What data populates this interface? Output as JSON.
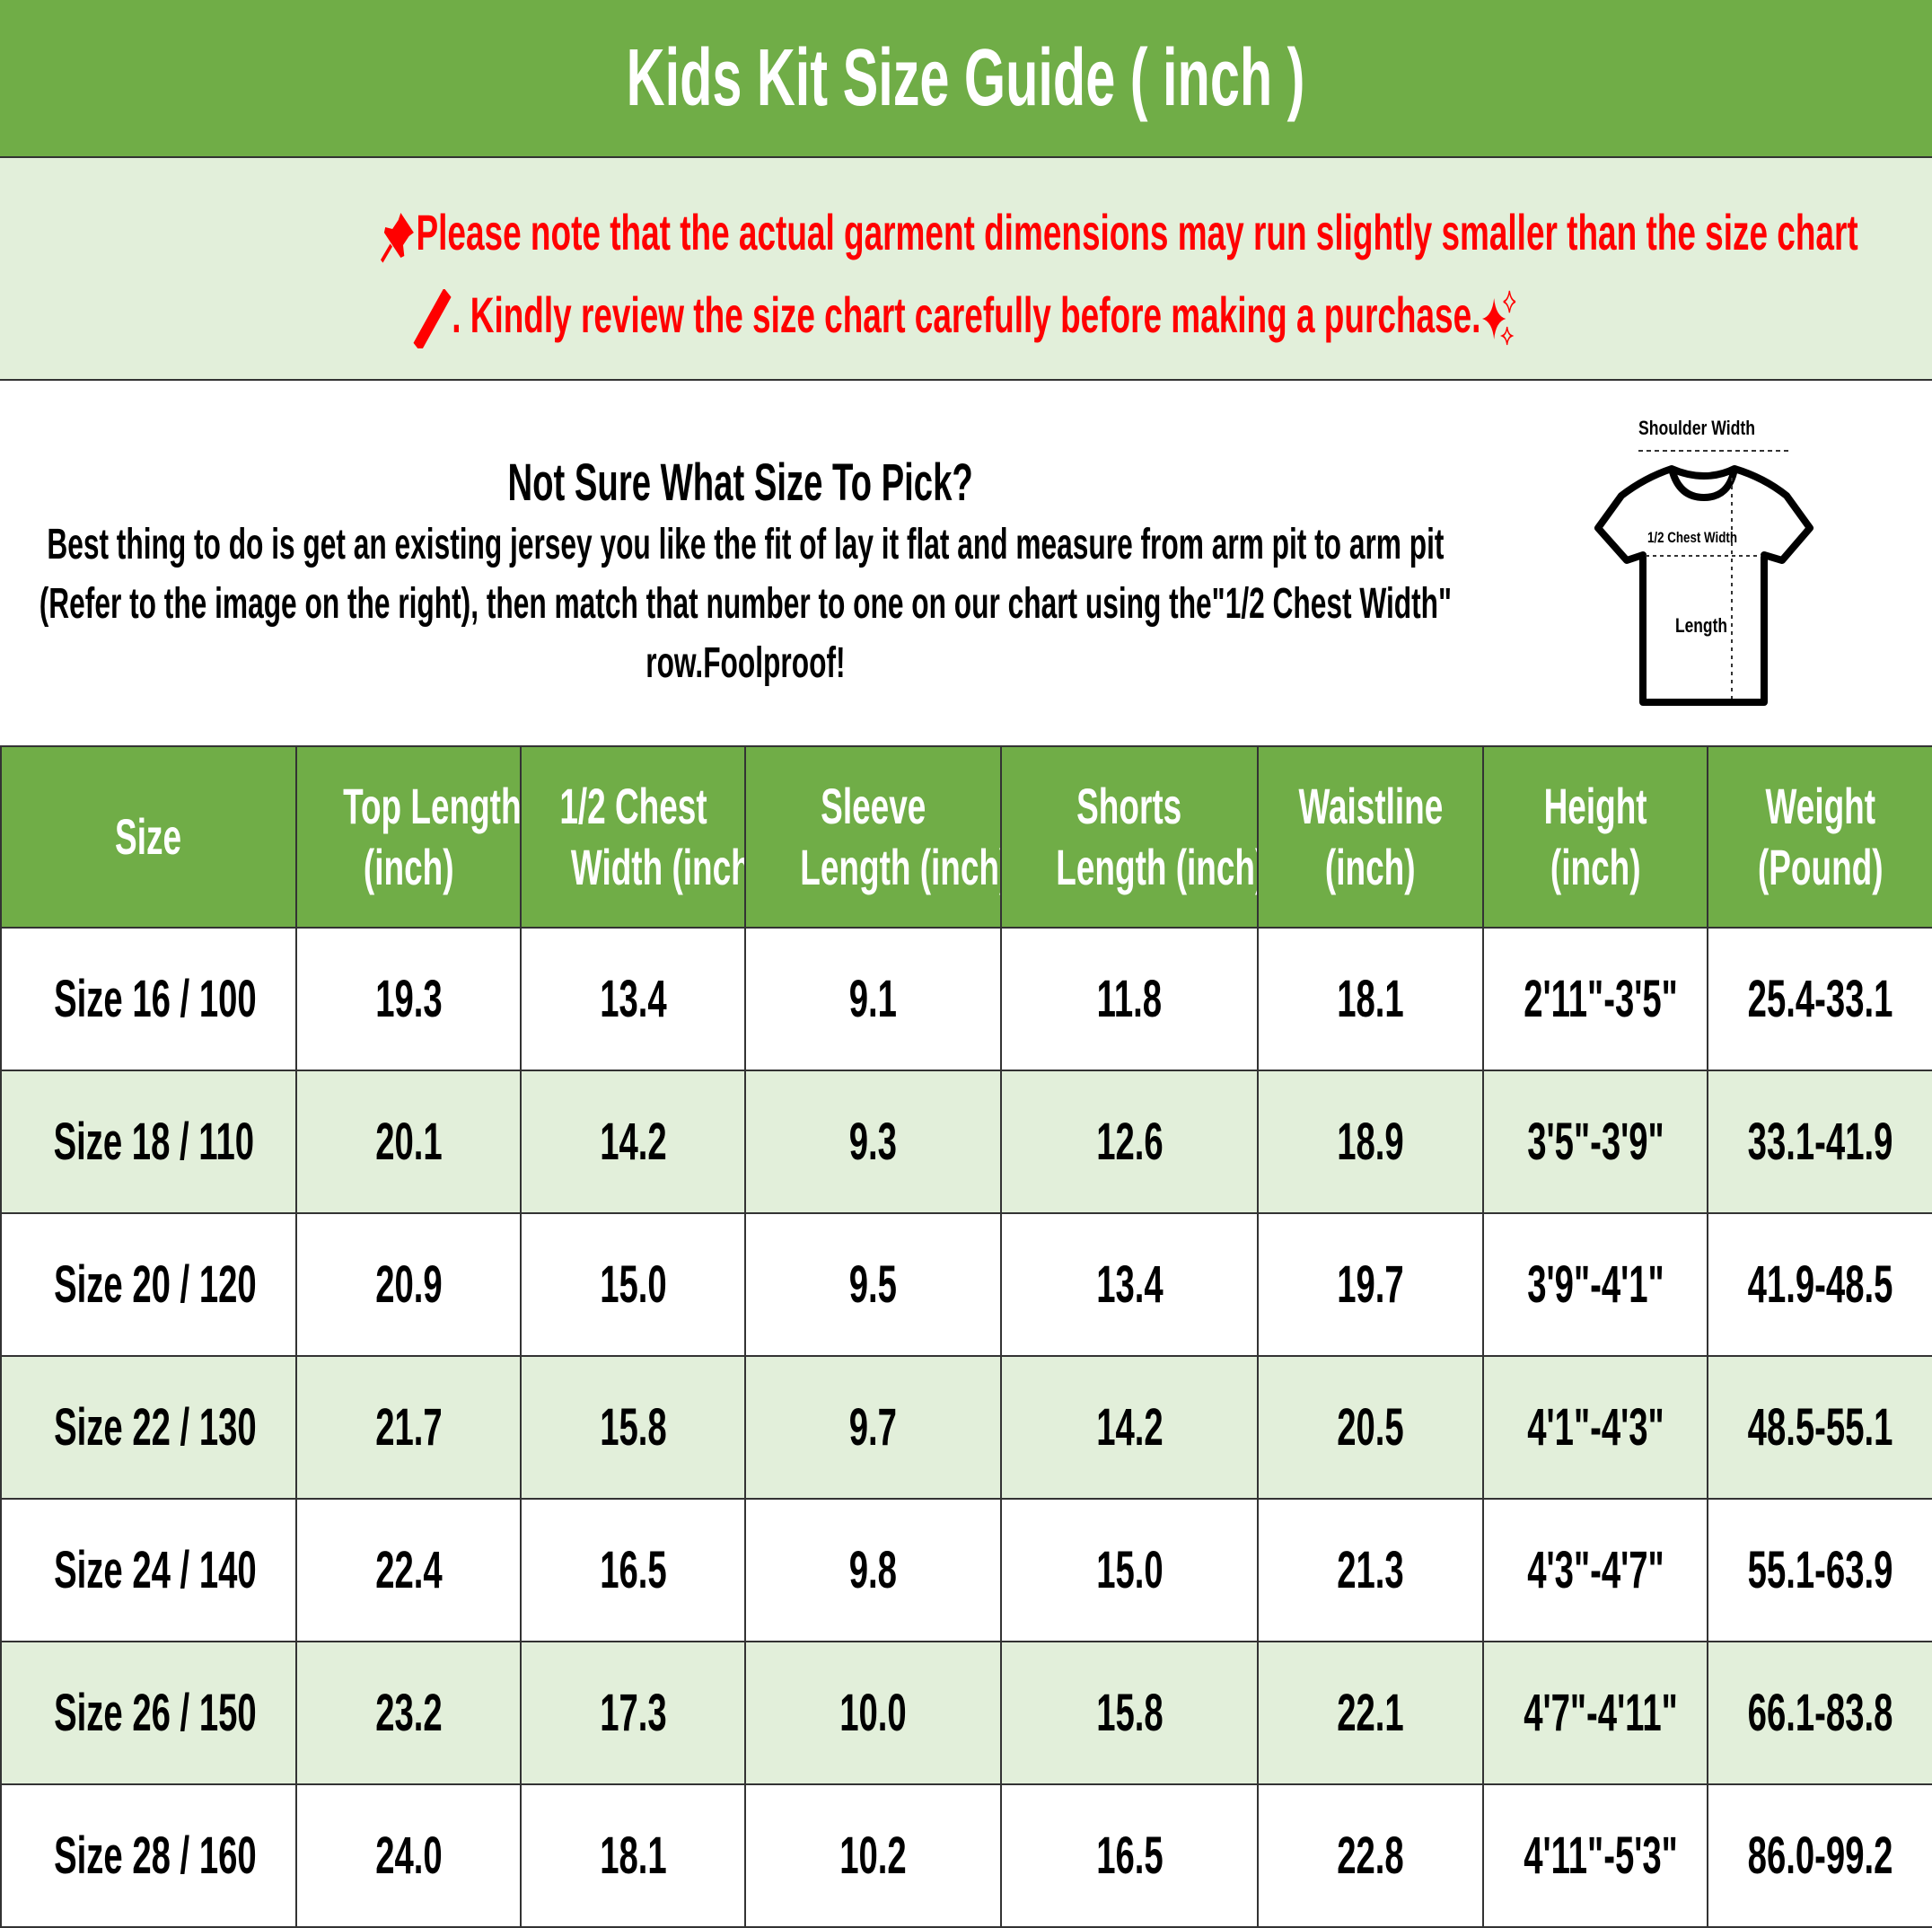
{
  "title": "Kids Kit Size Guide ( inch )",
  "notice": {
    "line1": "Please note that the actual garment dimensions may run slightly smaller than the size chart",
    "line2": ". Kindly review the size chart carefully before making a purchase.",
    "icons": [
      "pushpin-icon",
      "ruler-icon",
      "sparkles-icon"
    ],
    "color": "#ff0000"
  },
  "info": {
    "heading": "Not Sure What Size To Pick?",
    "body": "Best thing to do is get an existing jersey you like the fit of lay it flat and measure from arm pit to arm pit (Refer to the image on the right), then match that number to one on our chart using the\"1/2 Chest Width\" row.Foolproof!",
    "diagram": {
      "shoulder": "Shoulder Width",
      "chest": "1/2 Chest Width",
      "length": "Length"
    }
  },
  "colors": {
    "header_green": "#70ad47",
    "alt_row": "#e2efda"
  },
  "table": {
    "headers": [
      [
        "Size",
        ""
      ],
      [
        "Top Length",
        "(inch)"
      ],
      [
        "1/2 Chest",
        "Width (inch)"
      ],
      [
        "Sleeve",
        "Length (inch)"
      ],
      [
        "Shorts",
        "Length (inch)"
      ],
      [
        "Waistline",
        "(inch)"
      ],
      [
        "Height",
        "(inch)"
      ],
      [
        "Weight",
        "(Pound)"
      ]
    ],
    "rows": [
      [
        "Size 16 / 100",
        "19.3",
        "13.4",
        "9.1",
        "11.8",
        "18.1",
        "2'11\"-3'5\"",
        "25.4-33.1"
      ],
      [
        "Size 18 / 110",
        "20.1",
        "14.2",
        "9.3",
        "12.6",
        "18.9",
        "3'5\"-3'9\"",
        "33.1-41.9"
      ],
      [
        "Size 20 / 120",
        "20.9",
        "15.0",
        "9.5",
        "13.4",
        "19.7",
        "3'9\"-4'1\"",
        "41.9-48.5"
      ],
      [
        "Size 22 / 130",
        "21.7",
        "15.8",
        "9.7",
        "14.2",
        "20.5",
        "4'1\"-4'3\"",
        "48.5-55.1"
      ],
      [
        "Size 24 / 140",
        "22.4",
        "16.5",
        "9.8",
        "15.0",
        "21.3",
        "4'3\"-4'7\"",
        "55.1-63.9"
      ],
      [
        "Size 26 / 150",
        "23.2",
        "17.3",
        "10.0",
        "15.8",
        "22.1",
        "4'7\"-4'11\"",
        "66.1-83.8"
      ],
      [
        "Size 28 / 160",
        "24.0",
        "18.1",
        "10.2",
        "16.5",
        "22.8",
        "4'11\"-5'3\"",
        "86.0-99.2"
      ]
    ]
  }
}
